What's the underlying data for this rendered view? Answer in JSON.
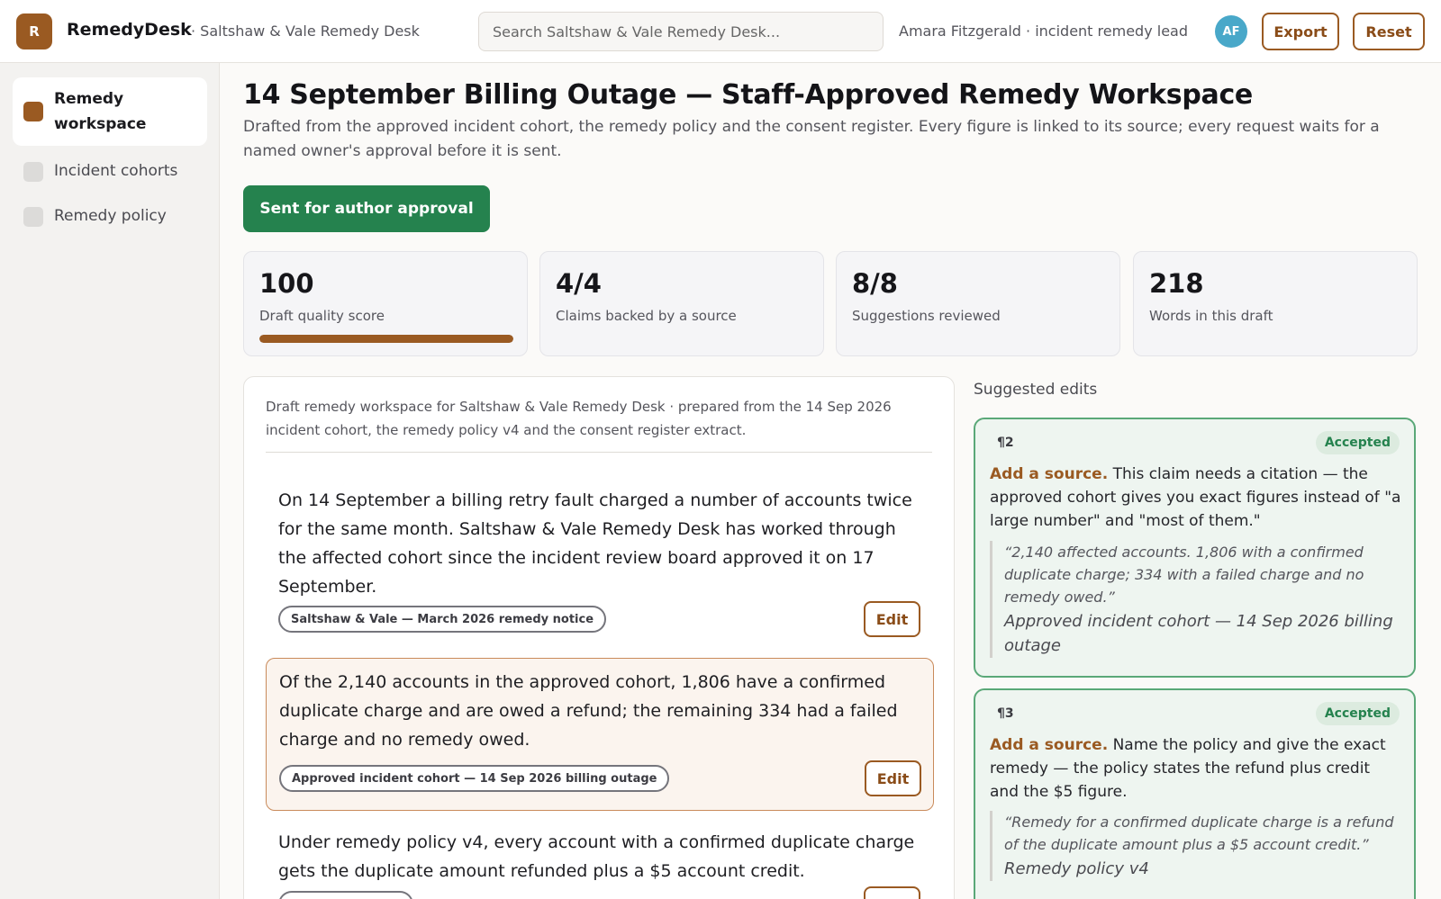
{
  "header": {
    "logo_letter": "R",
    "brand": "RemedyDesk",
    "subtitle": "· Saltshaw & Vale Remedy Desk",
    "search_placeholder": "Search Saltshaw & Vale Remedy Desk...",
    "user": "Amara Fitzgerald · incident remedy lead",
    "avatar_initials": "AF",
    "export_label": "Export",
    "reset_label": "Reset"
  },
  "sidebar": {
    "items": [
      {
        "label": "Remedy workspace",
        "active": true,
        "icon": "square-icon"
      },
      {
        "label": "Incident cohorts",
        "active": false,
        "icon": "square-icon"
      },
      {
        "label": "Remedy policy",
        "active": false,
        "icon": "square-icon"
      }
    ]
  },
  "main": {
    "title": "14 September Billing Outage — Staff-Approved Remedy Workspace",
    "description": "Drafted from the approved incident cohort, the remedy policy and the consent register. Every figure is linked to its source; every request waits for a named owner's approval before it is sent.",
    "primary_action": "Sent for author approval",
    "stats": [
      {
        "value": "100",
        "label": "Draft quality score",
        "progress": 1.0
      },
      {
        "value": "4/4",
        "label": "Claims backed by a source"
      },
      {
        "value": "8/8",
        "label": "Suggestions reviewed"
      },
      {
        "value": "218",
        "label": "Words in this draft"
      }
    ]
  },
  "draft": {
    "header": "Draft remedy workspace for Saltshaw & Vale Remedy Desk · prepared from the 14 Sep 2026 incident cohort, the remedy policy v4 and the consent register extract.",
    "paragraphs": [
      {
        "text": "On 14 September a billing retry fault charged a number of accounts twice for the same month. Saltshaw & Vale Remedy Desk has worked through the affected cohort since the incident review board approved it on 17 September.",
        "source": "Saltshaw & Vale — March 2026 remedy notice",
        "edit_label": "Edit"
      },
      {
        "text": "Of the 2,140 accounts in the approved cohort, 1,806 have a confirmed duplicate charge and are owed a refund; the remaining 334 had a failed charge and no remedy owed.",
        "source": "Approved incident cohort — 14 Sep 2026 billing outage",
        "edit_label": "Edit"
      },
      {
        "text": "Under remedy policy v4, every account with a confirmed duplicate charge gets the duplicate amount refunded plus a $5 account credit.",
        "source": "",
        "edit_label": "Edit"
      }
    ]
  },
  "suggestions": {
    "title": "Suggested edits",
    "items": [
      {
        "para": "¶2",
        "status": "Accepted",
        "action": "Add a source.",
        "text": "This claim needs a citation — the approved cohort gives you exact figures instead of \"a large number\" and \"most of them.\"",
        "quote": "“2,140 affected accounts. 1,806 with a confirmed duplicate charge; 334 with a failed charge and no remedy owed.”",
        "source": "Approved incident cohort — 14 Sep 2026 billing outage"
      },
      {
        "para": "¶3",
        "status": "Accepted",
        "action": "Add a source.",
        "text": "Name the policy and give the exact remedy — the policy states the refund plus credit and the $5 figure.",
        "quote": "“Remedy for a confirmed duplicate charge is a refund of the duplicate amount plus a $5 account credit.”",
        "source": "Remedy policy v4"
      }
    ]
  },
  "colors": {
    "accent": "#9a5a22",
    "primary": "#25824e",
    "avatar": "#49a8c9",
    "accepted_border": "#5aa878"
  }
}
